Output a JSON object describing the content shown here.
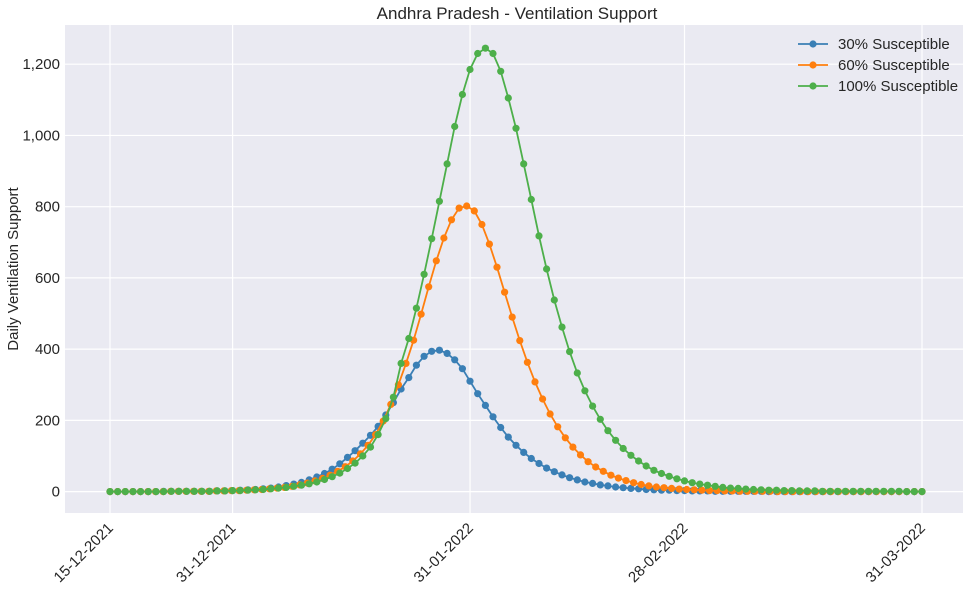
{
  "chart_data": {
    "type": "line",
    "title": "Andhra Pradesh - Ventilation Support",
    "xlabel": "",
    "ylabel": "Daily Ventilation Support",
    "x_start": "15-12-2021",
    "x_end": "31-03-2022",
    "x_ticks": [
      "15-12-2021",
      "31-12-2021",
      "31-01-2022",
      "28-02-2022",
      "31-03-2022"
    ],
    "ylim": [
      -60,
      1310
    ],
    "y_ticks": [
      0,
      200,
      400,
      600,
      800,
      1000,
      1200
    ],
    "y_tick_labels": [
      "0",
      "200",
      "400",
      "600",
      "800",
      "1,000",
      "1,200"
    ],
    "grid": true,
    "legend_position": "top-right",
    "background": "#eaeaf2",
    "series": [
      {
        "name": "30% Susceptible",
        "color": "#3a7fb5",
        "values": [
          0,
          0,
          0,
          0,
          0,
          0,
          0,
          1,
          1,
          1,
          1,
          1,
          1,
          1,
          2,
          2,
          3,
          4,
          5,
          6,
          8,
          10,
          13,
          17,
          21,
          26,
          33,
          41,
          51,
          63,
          78,
          96,
          115,
          136,
          158,
          183,
          215,
          250,
          288,
          320,
          355,
          380,
          394,
          397,
          388,
          370,
          345,
          310,
          275,
          242,
          210,
          180,
          153,
          130,
          110,
          93,
          79,
          66,
          56,
          47,
          39,
          33,
          27,
          23,
          19,
          16,
          13,
          11,
          9,
          8,
          6,
          5,
          4,
          4,
          3,
          3,
          2,
          2,
          2,
          1,
          1,
          1,
          1,
          1,
          1,
          1,
          0,
          0,
          0,
          0,
          0,
          0,
          0,
          0,
          0,
          0,
          0,
          0,
          0,
          0,
          0,
          0,
          0,
          0,
          0,
          0,
          0
        ]
      },
      {
        "name": "60% Susceptible",
        "color": "#ff7f0e",
        "values": [
          0,
          0,
          0,
          0,
          0,
          0,
          0,
          0,
          1,
          1,
          1,
          1,
          1,
          1,
          2,
          2,
          3,
          3,
          4,
          5,
          6,
          8,
          10,
          12,
          15,
          19,
          24,
          30,
          37,
          46,
          57,
          70,
          86,
          106,
          130,
          160,
          198,
          245,
          300,
          360,
          425,
          498,
          575,
          648,
          712,
          763,
          796,
          802,
          788,
          750,
          695,
          630,
          560,
          490,
          424,
          363,
          308,
          260,
          218,
          182,
          151,
          125,
          103,
          84,
          69,
          57,
          46,
          38,
          31,
          25,
          20,
          16,
          13,
          11,
          9,
          7,
          6,
          5,
          4,
          3,
          3,
          2,
          2,
          1,
          1,
          1,
          1,
          1,
          0,
          0,
          0,
          0,
          0,
          0,
          0,
          0,
          0,
          0,
          0,
          0,
          0,
          0,
          0,
          0,
          0,
          0,
          0,
          0
        ]
      },
      {
        "name": "100% Susceptible",
        "color": "#4daf4a",
        "values": [
          0,
          0,
          0,
          0,
          0,
          0,
          0,
          0,
          1,
          1,
          1,
          1,
          1,
          1,
          2,
          2,
          3,
          3,
          4,
          5,
          6,
          8,
          10,
          12,
          15,
          18,
          22,
          27,
          34,
          42,
          52,
          65,
          80,
          100,
          125,
          160,
          205,
          265,
          360,
          430,
          515,
          610,
          710,
          815,
          920,
          1025,
          1115,
          1185,
          1230,
          1245,
          1230,
          1180,
          1105,
          1020,
          920,
          820,
          718,
          625,
          538,
          462,
          393,
          333,
          283,
          240,
          203,
          171,
          144,
          121,
          102,
          86,
          72,
          60,
          51,
          43,
          36,
          30,
          25,
          21,
          18,
          15,
          12,
          10,
          9,
          7,
          6,
          5,
          4,
          4,
          3,
          3,
          2,
          2,
          2,
          1,
          1,
          1,
          1,
          1,
          1,
          1,
          1,
          1,
          1,
          1,
          0,
          0,
          0
        ]
      }
    ]
  }
}
